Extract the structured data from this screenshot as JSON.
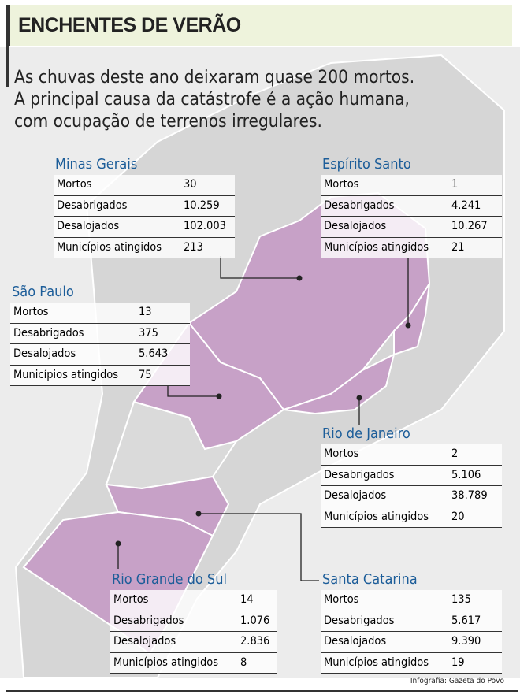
{
  "header": {
    "title": "ENCHENTES DE VERÃO",
    "subtitle": [
      "As chuvas deste ano deixaram quase 200 mortos.",
      "A principal causa da catástrofe é a ação humana,",
      "com ocupação de terrenos irregulares."
    ]
  },
  "states": [
    {
      "name": "Minas Gerais",
      "rows": [
        [
          "Mortos",
          "30"
        ],
        [
          "Desabrigados",
          "10.259"
        ],
        [
          "Desalojados",
          "102.003"
        ],
        [
          "Municípios atingidos",
          "213"
        ]
      ]
    },
    {
      "name": "Espírito Santo",
      "rows": [
        [
          "Mortos",
          "1"
        ],
        [
          "Desabrigados",
          "4.241"
        ],
        [
          "Desalojados",
          "10.267"
        ],
        [
          "Municípios atingidos",
          "21"
        ]
      ]
    },
    {
      "name": "São Paulo",
      "rows": [
        [
          "Mortos",
          "13"
        ],
        [
          "Desabrigados",
          "375"
        ],
        [
          "Desalojados",
          "5.643"
        ],
        [
          "Municípios atingidos",
          "75"
        ]
      ]
    },
    {
      "name": "Rio de Janeiro",
      "rows": [
        [
          "Mortos",
          "2"
        ],
        [
          "Desabrigados",
          "5.106"
        ],
        [
          "Desalojados",
          "38.789"
        ],
        [
          "Municípios atingidos",
          "20"
        ]
      ]
    },
    {
      "name": "Rio Grande do Sul",
      "rows": [
        [
          "Mortos",
          "14"
        ],
        [
          "Desabrigados",
          "1.076"
        ],
        [
          "Desalojados",
          "2.836"
        ],
        [
          "Municípios atingidos",
          "8"
        ]
      ]
    },
    {
      "name": "Santa Catarina",
      "rows": [
        [
          "Mortos",
          "135"
        ],
        [
          "Desabrigados",
          "5.617"
        ],
        [
          "Desalojados",
          "9.390"
        ],
        [
          "Municípios atingidos",
          "19"
        ]
      ]
    }
  ],
  "credit": "Infografia: Gazeta do Povo"
}
